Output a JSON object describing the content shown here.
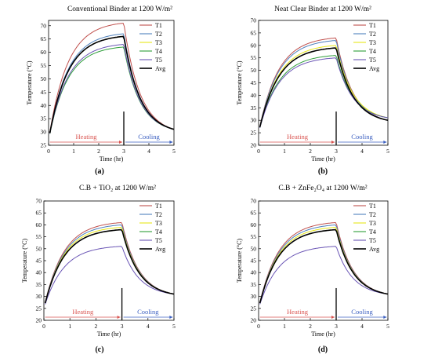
{
  "series_names": [
    "T1",
    "T2",
    "T3",
    "T4",
    "T5",
    "Avg"
  ],
  "series_colors": [
    "#c0504d",
    "#4f81bd",
    "#e8e81a",
    "#2e9e3a",
    "#6a55b5",
    "#000000"
  ],
  "annotations": {
    "heating": "Heating",
    "cooling": "Cooling",
    "heating_color": "#d9534f",
    "cooling_color": "#3b5fc0"
  },
  "chart_data": [
    {
      "type": "line",
      "title": "Conventional Binder at 1200 W/m²",
      "panel_label": "(a)",
      "xlabel": "Time (hr)",
      "ylabel": "Temperature (°C)",
      "xlim": [
        0,
        5
      ],
      "ylim": [
        25,
        72
      ],
      "x_ticks": [
        0,
        1,
        2,
        3,
        4,
        5
      ],
      "y_ticks": [
        25,
        30,
        35,
        40,
        45,
        50,
        55,
        60,
        65,
        70
      ],
      "grid": false,
      "legend": "right",
      "heating_end_hr": 3,
      "series": [
        {
          "name": "T1",
          "start": 27,
          "peak": 71,
          "end": 31
        },
        {
          "name": "T2",
          "start": 27,
          "peak": 67,
          "end": 31
        },
        {
          "name": "T3",
          "start": 27,
          "peak": 66,
          "end": 31
        },
        {
          "name": "T4",
          "start": 27,
          "peak": 62,
          "end": 31
        },
        {
          "name": "T5",
          "start": 27,
          "peak": 63,
          "end": 31
        },
        {
          "name": "Avg",
          "start": 27,
          "peak": 66,
          "end": 31
        }
      ]
    },
    {
      "type": "line",
      "title": "Neat Clear Binder at 1200 W/m²",
      "panel_label": "(b)",
      "xlabel": "Time (hr)",
      "ylabel": "Temperature (°C)",
      "xlim": [
        0,
        5
      ],
      "ylim": [
        20,
        70
      ],
      "x_ticks": [
        0,
        1,
        2,
        3,
        4,
        5
      ],
      "y_ticks": [
        20,
        25,
        30,
        35,
        40,
        45,
        50,
        55,
        60,
        65,
        70
      ],
      "grid": false,
      "legend": "right",
      "heating_end_hr": 3,
      "series": [
        {
          "name": "T1",
          "start": 25,
          "peak": 63,
          "end": 30
        },
        {
          "name": "T2",
          "start": 25,
          "peak": 62,
          "end": 30
        },
        {
          "name": "T3",
          "start": 25,
          "peak": 60,
          "end": 31
        },
        {
          "name": "T4",
          "start": 25,
          "peak": 56,
          "end": 31
        },
        {
          "name": "T5",
          "start": 25,
          "peak": 55,
          "end": 31
        },
        {
          "name": "Avg",
          "start": 25,
          "peak": 59,
          "end": 30
        }
      ]
    },
    {
      "type": "line",
      "title": "C.B + TiO₂ at 1200 W/m²",
      "panel_label": "(c)",
      "xlabel": "Time (hr)",
      "ylabel": "Temperature (°C)",
      "xlim": [
        0,
        5
      ],
      "ylim": [
        20,
        70
      ],
      "x_ticks": [
        0,
        1,
        2,
        3,
        4,
        5
      ],
      "y_ticks": [
        20,
        25,
        30,
        35,
        40,
        45,
        50,
        55,
        60,
        65,
        70
      ],
      "grid": false,
      "legend": "right",
      "heating_end_hr": 3,
      "series": [
        {
          "name": "T1",
          "start": 25,
          "peak": 61,
          "end": 31
        },
        {
          "name": "T2",
          "start": 25,
          "peak": 60,
          "end": 31
        },
        {
          "name": "T3",
          "start": 25,
          "peak": 59,
          "end": 31
        },
        {
          "name": "T4",
          "start": 25,
          "peak": 58,
          "end": 31
        },
        {
          "name": "T5",
          "start": 25,
          "peak": 51,
          "end": 31
        },
        {
          "name": "Avg",
          "start": 25,
          "peak": 58,
          "end": 31
        }
      ]
    },
    {
      "type": "line",
      "title": "C.B + ZnFe₂O₄ at 1200 W/m²",
      "panel_label": "(d)",
      "xlabel": "Time (hr)",
      "ylabel": "Temperature (°C)",
      "xlim": [
        0,
        5
      ],
      "ylim": [
        20,
        70
      ],
      "x_ticks": [
        0,
        1,
        2,
        3,
        4,
        5
      ],
      "y_ticks": [
        20,
        25,
        30,
        35,
        40,
        45,
        50,
        55,
        60,
        65,
        70
      ],
      "grid": false,
      "legend": "right",
      "heating_end_hr": 3,
      "series": [
        {
          "name": "T1",
          "start": 25,
          "peak": 61,
          "end": 31
        },
        {
          "name": "T2",
          "start": 25,
          "peak": 60,
          "end": 31
        },
        {
          "name": "T3",
          "start": 25,
          "peak": 59,
          "end": 31
        },
        {
          "name": "T4",
          "start": 25,
          "peak": 58,
          "end": 31
        },
        {
          "name": "T5",
          "start": 25,
          "peak": 51,
          "end": 31
        },
        {
          "name": "Avg",
          "start": 25,
          "peak": 58,
          "end": 31
        }
      ]
    }
  ]
}
